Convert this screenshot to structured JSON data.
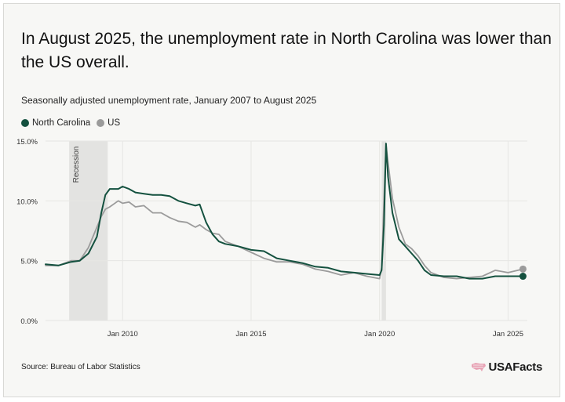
{
  "title": "In August 2025, the unemployment rate in North Carolina was lower than the US overall.",
  "subtitle": "Seasonally adjusted unemployment rate, January 2007 to August 2025",
  "source": "Source: Bureau of Labor Statistics",
  "brand": "USAFacts",
  "colors": {
    "nc": "#14513f",
    "us": "#9b9b9b",
    "recession": "#e3e3e1",
    "grid": "#e6e6e3",
    "brand_flag": "#e8a3b5"
  },
  "icons": {
    "brand": "us-map-icon"
  },
  "chart_data": {
    "type": "line",
    "title": "",
    "xlabel": "",
    "ylabel": "",
    "xlim": [
      2007.0,
      2025.75
    ],
    "ylim": [
      0,
      15
    ],
    "y_ticks": [
      0,
      5,
      10,
      15
    ],
    "y_tick_labels": [
      "0.0%",
      "5.0%",
      "10.0%",
      "15.0%"
    ],
    "x_ticks": [
      2010,
      2015,
      2020,
      2025
    ],
    "x_tick_labels": [
      "Jan 2010",
      "Jan 2015",
      "Jan 2020",
      "Jan 2025"
    ],
    "grid": true,
    "legend": "top-left",
    "shaded_regions": [
      {
        "label": "Recession",
        "start": 2007.92,
        "end": 2009.42
      },
      {
        "label": "",
        "start": 2020.08,
        "end": 2020.25
      }
    ],
    "series": [
      {
        "name": "North Carolina",
        "color": "#14513f",
        "points": [
          [
            2007.0,
            4.7
          ],
          [
            2007.5,
            4.6
          ],
          [
            2008.0,
            4.9
          ],
          [
            2008.33,
            5.0
          ],
          [
            2008.67,
            5.6
          ],
          [
            2009.0,
            7.0
          ],
          [
            2009.17,
            9.0
          ],
          [
            2009.33,
            10.5
          ],
          [
            2009.5,
            11.0
          ],
          [
            2009.83,
            11.0
          ],
          [
            2010.0,
            11.2
          ],
          [
            2010.25,
            11.0
          ],
          [
            2010.5,
            10.7
          ],
          [
            2010.83,
            10.6
          ],
          [
            2011.17,
            10.5
          ],
          [
            2011.5,
            10.5
          ],
          [
            2011.83,
            10.4
          ],
          [
            2012.17,
            10.0
          ],
          [
            2012.5,
            9.8
          ],
          [
            2012.83,
            9.6
          ],
          [
            2013.0,
            9.7
          ],
          [
            2013.25,
            8.2
          ],
          [
            2013.5,
            7.2
          ],
          [
            2013.75,
            6.6
          ],
          [
            2014.0,
            6.4
          ],
          [
            2014.5,
            6.2
          ],
          [
            2015.0,
            5.9
          ],
          [
            2015.5,
            5.8
          ],
          [
            2016.0,
            5.2
          ],
          [
            2016.5,
            5.0
          ],
          [
            2017.0,
            4.8
          ],
          [
            2017.5,
            4.5
          ],
          [
            2018.0,
            4.4
          ],
          [
            2018.5,
            4.1
          ],
          [
            2019.0,
            4.0
          ],
          [
            2019.5,
            3.9
          ],
          [
            2020.0,
            3.8
          ],
          [
            2020.08,
            4.2
          ],
          [
            2020.17,
            8.0
          ],
          [
            2020.25,
            14.8
          ],
          [
            2020.33,
            12.0
          ],
          [
            2020.5,
            9.0
          ],
          [
            2020.75,
            6.8
          ],
          [
            2021.0,
            6.2
          ],
          [
            2021.25,
            5.6
          ],
          [
            2021.5,
            5.0
          ],
          [
            2021.75,
            4.2
          ],
          [
            2022.0,
            3.8
          ],
          [
            2022.5,
            3.7
          ],
          [
            2023.0,
            3.7
          ],
          [
            2023.5,
            3.5
          ],
          [
            2024.0,
            3.5
          ],
          [
            2024.5,
            3.7
          ],
          [
            2025.0,
            3.7
          ],
          [
            2025.58,
            3.7
          ]
        ]
      },
      {
        "name": "US",
        "color": "#9b9b9b",
        "points": [
          [
            2007.0,
            4.6
          ],
          [
            2007.5,
            4.6
          ],
          [
            2008.0,
            5.0
          ],
          [
            2008.33,
            5.0
          ],
          [
            2008.67,
            6.1
          ],
          [
            2009.0,
            7.8
          ],
          [
            2009.17,
            8.7
          ],
          [
            2009.33,
            9.3
          ],
          [
            2009.5,
            9.5
          ],
          [
            2009.83,
            10.0
          ],
          [
            2010.0,
            9.8
          ],
          [
            2010.25,
            9.9
          ],
          [
            2010.5,
            9.5
          ],
          [
            2010.83,
            9.6
          ],
          [
            2011.17,
            9.0
          ],
          [
            2011.5,
            9.0
          ],
          [
            2011.83,
            8.6
          ],
          [
            2012.17,
            8.3
          ],
          [
            2012.5,
            8.2
          ],
          [
            2012.83,
            7.8
          ],
          [
            2013.0,
            8.0
          ],
          [
            2013.25,
            7.6
          ],
          [
            2013.5,
            7.3
          ],
          [
            2013.75,
            7.2
          ],
          [
            2014.0,
            6.6
          ],
          [
            2014.5,
            6.2
          ],
          [
            2015.0,
            5.7
          ],
          [
            2015.5,
            5.2
          ],
          [
            2016.0,
            4.9
          ],
          [
            2016.5,
            4.9
          ],
          [
            2017.0,
            4.7
          ],
          [
            2017.5,
            4.3
          ],
          [
            2018.0,
            4.1
          ],
          [
            2018.5,
            3.8
          ],
          [
            2019.0,
            4.0
          ],
          [
            2019.5,
            3.7
          ],
          [
            2020.0,
            3.5
          ],
          [
            2020.08,
            4.4
          ],
          [
            2020.17,
            10.0
          ],
          [
            2020.25,
            14.7
          ],
          [
            2020.33,
            13.2
          ],
          [
            2020.5,
            10.2
          ],
          [
            2020.75,
            7.8
          ],
          [
            2021.0,
            6.4
          ],
          [
            2021.25,
            6.0
          ],
          [
            2021.5,
            5.4
          ],
          [
            2021.75,
            4.6
          ],
          [
            2022.0,
            4.0
          ],
          [
            2022.5,
            3.6
          ],
          [
            2023.0,
            3.5
          ],
          [
            2023.5,
            3.6
          ],
          [
            2024.0,
            3.7
          ],
          [
            2024.5,
            4.2
          ],
          [
            2025.0,
            4.0
          ],
          [
            2025.58,
            4.3
          ]
        ]
      }
    ]
  }
}
